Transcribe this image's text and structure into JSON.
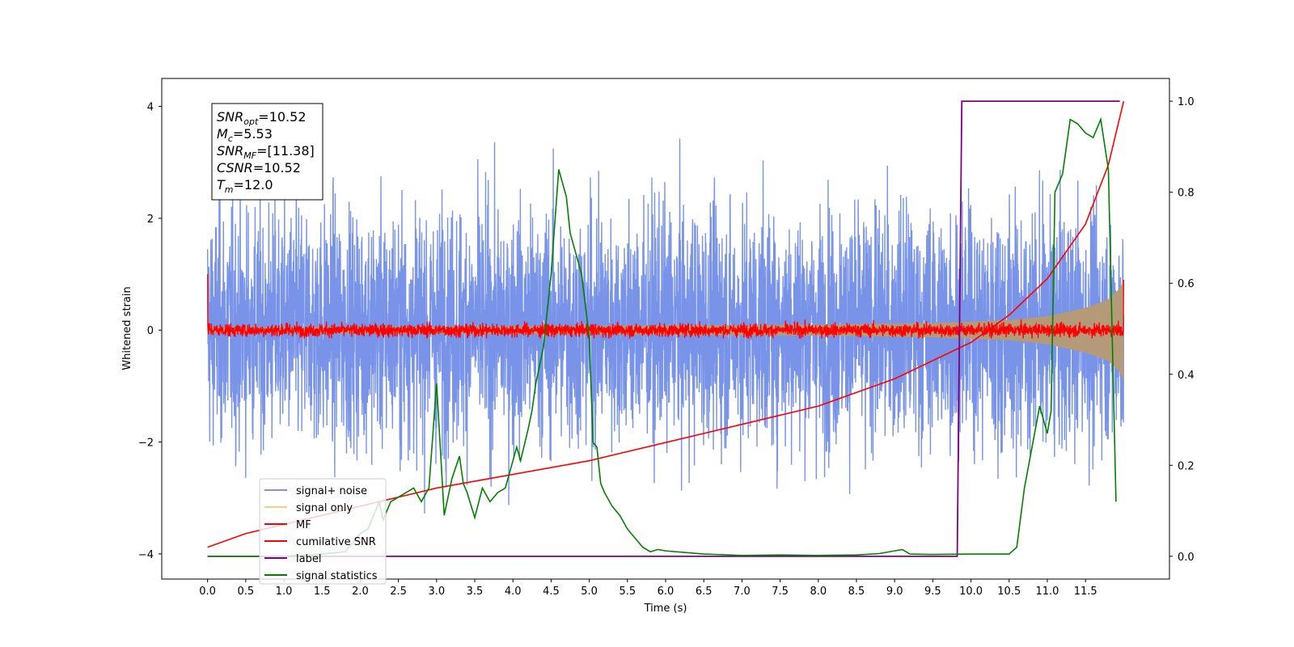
{
  "chart_data": {
    "type": "line",
    "xlabel": "Time (s)",
    "ylabel": "Whitened strain",
    "xlim": [
      -0.6,
      12.6
    ],
    "ylim": [
      -4.45,
      4.5
    ],
    "y2lim": [
      -0.05,
      1.05
    ],
    "x_ticks": [
      0.0,
      0.5,
      1.0,
      1.5,
      2.0,
      2.5,
      3.0,
      3.5,
      4.0,
      4.5,
      5.0,
      5.5,
      6.0,
      6.5,
      7.0,
      7.5,
      8.0,
      8.5,
      9.0,
      9.5,
      10.0,
      10.5,
      11.0,
      11.5
    ],
    "x_tick_labels": [
      "0.0",
      "0.5",
      "1.0",
      "1.5",
      "2.0",
      "2.5",
      "3.0",
      "3.5",
      "4.0",
      "4.5",
      "5.0",
      "5.5",
      "6.0",
      "6.5",
      "7.0",
      "7.5",
      "8.0",
      "8.5",
      "9.0",
      "9.5",
      "10.0",
      "10.5",
      "11.0",
      "11.5"
    ],
    "y_ticks": [
      -4,
      -2,
      0,
      2,
      4
    ],
    "y_tick_labels": [
      "−4",
      "−2",
      "0",
      "2",
      "4"
    ],
    "y2_ticks": [
      0.0,
      0.2,
      0.4,
      0.6,
      0.8,
      1.0
    ],
    "y2_tick_labels": [
      "0.0",
      "0.2",
      "0.4",
      "0.6",
      "0.8",
      "1.0"
    ],
    "grid": false,
    "legend_position": "bottom-left",
    "annotation": [
      {
        "sym": "SNR",
        "sub": "opt",
        "val": "=10.52"
      },
      {
        "sym": "M",
        "sub": "c",
        "val": "=5.53"
      },
      {
        "sym": "SNR",
        "sub": "MF",
        "val": "=[11.38]"
      },
      {
        "sym": "CSNR",
        "sub": "",
        "val": "=10.52"
      },
      {
        "sym": "T",
        "sub": "m",
        "val": "=12.0"
      }
    ],
    "series": [
      {
        "name": "signal+ noise",
        "color": "#7893e8",
        "axis": "left",
        "style": "noise",
        "amplitude_range": [
          -4.1,
          4.05
        ]
      },
      {
        "name": "signal only",
        "color": "#f5cf80",
        "axis": "left",
        "style": "chirp_envelope",
        "x": [
          0.0,
          4.0,
          8.0,
          9.5,
          10.5,
          11.0,
          11.5,
          11.8,
          11.95,
          12.0
        ],
        "envelope": [
          0.05,
          0.07,
          0.1,
          0.13,
          0.18,
          0.25,
          0.4,
          0.55,
          0.75,
          0.9
        ]
      },
      {
        "name": "MF",
        "color": "#ff0000",
        "axis": "left",
        "style": "noise",
        "amplitude_range": [
          -0.15,
          0.25
        ]
      },
      {
        "name": "cumilative SNR",
        "color": "#ff0000",
        "axis": "right",
        "x": [
          0.0,
          0.5,
          1.0,
          2.0,
          3.0,
          4.0,
          5.0,
          6.0,
          7.0,
          8.0,
          9.0,
          9.5,
          10.0,
          10.5,
          11.0,
          11.5,
          11.8,
          12.0
        ],
        "values": [
          0.02,
          0.05,
          0.07,
          0.11,
          0.15,
          0.18,
          0.21,
          0.25,
          0.29,
          0.33,
          0.39,
          0.43,
          0.47,
          0.53,
          0.61,
          0.73,
          0.86,
          1.0
        ]
      },
      {
        "name": "label",
        "color": "#800080",
        "axis": "right",
        "x": [
          0.0,
          9.82,
          9.88,
          11.95
        ],
        "values": [
          0.0,
          0.0,
          1.0,
          1.0
        ]
      },
      {
        "name": "signal statistics",
        "color": "#008000",
        "axis": "right",
        "x": [
          0.0,
          0.5,
          1.0,
          1.5,
          1.8,
          2.0,
          2.1,
          2.2,
          2.25,
          2.3,
          2.4,
          2.5,
          2.6,
          2.7,
          2.8,
          2.9,
          3.0,
          3.1,
          3.2,
          3.3,
          3.35,
          3.4,
          3.5,
          3.6,
          3.7,
          3.75,
          3.8,
          3.9,
          4.0,
          4.05,
          4.1,
          4.2,
          4.25,
          4.3,
          4.4,
          4.5,
          4.6,
          4.7,
          4.75,
          4.8,
          4.9,
          5.0,
          5.05,
          5.1,
          5.15,
          5.2,
          5.3,
          5.4,
          5.5,
          5.6,
          5.7,
          5.8,
          5.9,
          6.0,
          6.5,
          7.0,
          7.5,
          8.0,
          8.5,
          8.8,
          9.0,
          9.1,
          9.2,
          9.5,
          10.0,
          10.5,
          10.6,
          10.7,
          10.8,
          10.9,
          11.0,
          11.05,
          11.1,
          11.2,
          11.3,
          11.4,
          11.5,
          11.6,
          11.7,
          11.8,
          11.9
        ],
        "values": [
          0.0,
          0.0,
          0.0,
          0.005,
          0.01,
          0.05,
          0.06,
          0.1,
          0.12,
          0.08,
          0.12,
          0.13,
          0.14,
          0.15,
          0.12,
          0.15,
          0.38,
          0.09,
          0.17,
          0.22,
          0.16,
          0.14,
          0.085,
          0.15,
          0.12,
          0.13,
          0.14,
          0.15,
          0.21,
          0.24,
          0.21,
          0.28,
          0.32,
          0.38,
          0.46,
          0.62,
          0.85,
          0.79,
          0.71,
          0.68,
          0.62,
          0.48,
          0.25,
          0.24,
          0.16,
          0.14,
          0.11,
          0.09,
          0.06,
          0.04,
          0.02,
          0.01,
          0.015,
          0.012,
          0.005,
          0.002,
          0.003,
          0.002,
          0.003,
          0.006,
          0.012,
          0.015,
          0.005,
          0.004,
          0.005,
          0.005,
          0.02,
          0.15,
          0.24,
          0.33,
          0.27,
          0.32,
          0.8,
          0.84,
          0.96,
          0.95,
          0.93,
          0.92,
          0.96,
          0.85,
          0.12
        ]
      }
    ]
  }
}
